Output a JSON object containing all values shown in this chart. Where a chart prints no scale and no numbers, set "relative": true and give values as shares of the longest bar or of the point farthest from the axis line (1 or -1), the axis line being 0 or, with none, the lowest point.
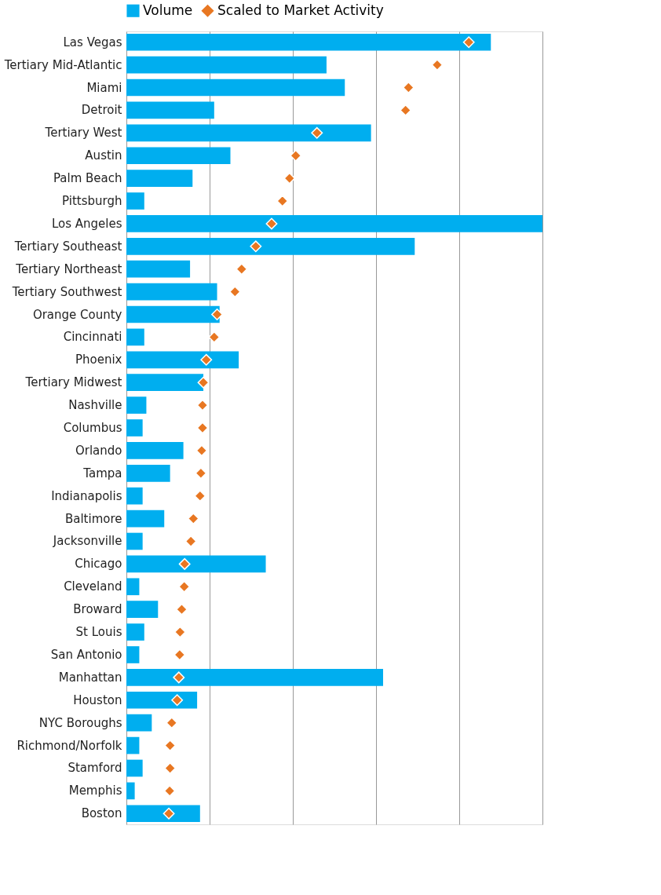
{
  "chart_data": {
    "type": "bar",
    "orientation": "horizontal",
    "relative": true,
    "grid": "x",
    "legend": "top",
    "categories": [
      "Las Vegas",
      "Tertiary Mid-Atlantic",
      "Miami",
      "Detroit",
      "Tertiary West",
      "Austin",
      "Palm Beach",
      "Pittsburgh",
      "Los Angeles",
      "Tertiary Southeast",
      "Tertiary Northeast",
      "Tertiary Southwest",
      "Orange County",
      "Cincinnati",
      "Phoenix",
      "Tertiary Midwest",
      "Nashville",
      "Columbus",
      "Orlando",
      "Tampa",
      "Indianapolis",
      "Baltimore",
      "Jacksonville",
      "Chicago",
      "Cleveland",
      "Broward",
      "St Louis",
      "San Antonio",
      "Manhattan",
      "Houston",
      "NYC Boroughs",
      "Richmond/Norfolk",
      "Stamford",
      "Memphis",
      "Boston"
    ],
    "series": [
      {
        "name": "Volume",
        "type": "bar",
        "color": "#00aeef",
        "values": [
          0.876,
          0.481,
          0.525,
          0.211,
          0.588,
          0.25,
          0.159,
          0.043,
          1,
          0.693,
          0.153,
          0.218,
          0.224,
          0.043,
          0.27,
          0.185,
          0.048,
          0.039,
          0.137,
          0.105,
          0.039,
          0.091,
          0.039,
          0.335,
          0.031,
          0.076,
          0.043,
          0.031,
          0.617,
          0.17,
          0.061,
          0.031,
          0.039,
          0.02,
          0.177
        ]
      },
      {
        "name": "Scaled to Market Activity",
        "type": "scatter",
        "marker": "diamond",
        "color": "#e87722",
        "values": [
          0.823,
          0.747,
          0.678,
          0.671,
          0.458,
          0.407,
          0.392,
          0.375,
          0.349,
          0.311,
          0.277,
          0.261,
          0.218,
          0.211,
          0.192,
          0.185,
          0.183,
          0.183,
          0.181,
          0.179,
          0.177,
          0.161,
          0.155,
          0.14,
          0.139,
          0.133,
          0.129,
          0.128,
          0.126,
          0.122,
          0.109,
          0.105,
          0.105,
          0.104,
          0.102
        ]
      }
    ]
  }
}
